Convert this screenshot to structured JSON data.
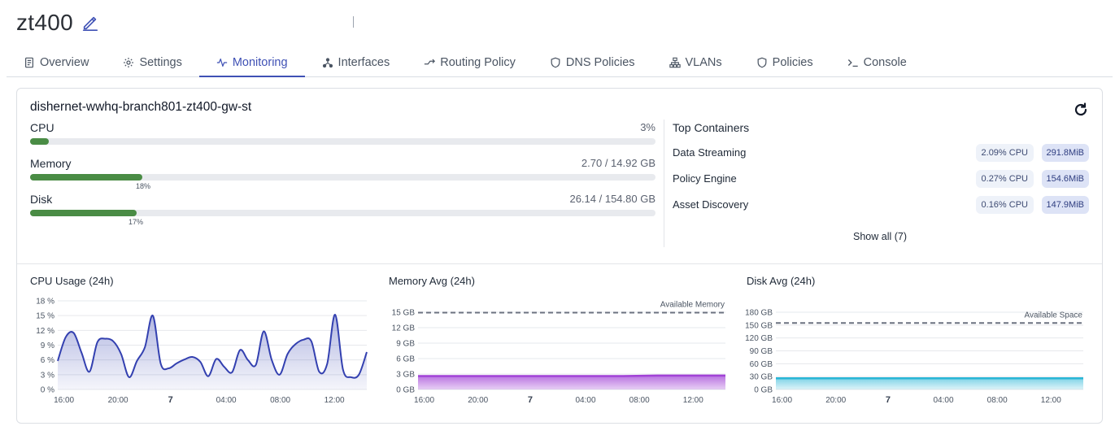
{
  "header": {
    "title": "zt400"
  },
  "tabs": [
    {
      "label": "Overview",
      "icon": "document-icon",
      "active": false
    },
    {
      "label": "Settings",
      "icon": "gear-icon",
      "active": false
    },
    {
      "label": "Monitoring",
      "icon": "pulse-icon",
      "active": true
    },
    {
      "label": "Interfaces",
      "icon": "network-icon",
      "active": false
    },
    {
      "label": "Routing Policy",
      "icon": "route-icon",
      "active": false
    },
    {
      "label": "DNS Policies",
      "icon": "shield-icon",
      "active": false
    },
    {
      "label": "VLANs",
      "icon": "hierarchy-icon",
      "active": false
    },
    {
      "label": "Policies",
      "icon": "shield-icon",
      "active": false
    },
    {
      "label": "Console",
      "icon": "terminal-icon",
      "active": false
    }
  ],
  "device": {
    "name": "dishernet-wwhq-branch801-zt400-gw-st",
    "metrics": {
      "cpu": {
        "label": "CPU",
        "value": "3%",
        "fraction": 0.03
      },
      "memory": {
        "label": "Memory",
        "value": "2.70 / 14.92 GB",
        "pct_label": "18%",
        "fraction": 0.18
      },
      "disk": {
        "label": "Disk",
        "value": "26.14 / 154.80 GB",
        "pct_label": "17%",
        "fraction": 0.17
      }
    }
  },
  "containers": {
    "title": "Top Containers",
    "items": [
      {
        "name": "Data Streaming",
        "cpu": "2.09% CPU",
        "mem": "291.8MiB"
      },
      {
        "name": "Policy Engine",
        "cpu": "0.27% CPU",
        "mem": "154.6MiB"
      },
      {
        "name": "Asset Discovery",
        "cpu": "0.16% CPU",
        "mem": "147.9MiB"
      }
    ],
    "show_all": "Show all (7)"
  },
  "colors": {
    "accent": "#3f51b5",
    "bar": "#4a8c45",
    "cpu_line": "#3340b0",
    "mem_line": "#a142d6",
    "disk_line": "#29b6d6"
  },
  "chart_data": [
    {
      "type": "area",
      "title": "CPU Usage (24h)",
      "x_ticks": [
        "16:00",
        "20:00",
        "7",
        "04:00",
        "08:00",
        "12:00"
      ],
      "y_ticks": [
        "18 %",
        "15 %",
        "12 %",
        "9 %",
        "6 %",
        "3 %",
        "0 %"
      ],
      "ylim": [
        0,
        18
      ],
      "series": [
        {
          "values": [
            5.8,
            10.6,
            11.5,
            7.5,
            3.6,
            9.6,
            10.3,
            9.8,
            7.2,
            2.5,
            5.8,
            8.6,
            15.0,
            5.2,
            4.3,
            5.3,
            6.1,
            6.6,
            5.6,
            2.7,
            6.2,
            4.6,
            3.5,
            8.0,
            6.0,
            5.0,
            11.8,
            6.0,
            3.0,
            7.2,
            9.2,
            10.1,
            9.8,
            3.6,
            5.2,
            15.2,
            4.0,
            2.5,
            3.0,
            7.6
          ]
        }
      ]
    },
    {
      "type": "area",
      "title": "Memory Avg (24h)",
      "x_ticks": [
        "16:00",
        "20:00",
        "7",
        "04:00",
        "08:00",
        "12:00"
      ],
      "y_ticks": [
        "15 GB",
        "12 GB",
        "9 GB",
        "6 GB",
        "3 GB",
        "0 GB"
      ],
      "ylim": [
        0,
        15
      ],
      "series": [
        {
          "values": [
            2.6,
            2.6,
            2.6,
            2.6,
            2.6,
            2.6,
            2.6,
            2.7,
            2.7,
            2.7
          ]
        }
      ],
      "reference": {
        "label": "Available Memory",
        "value": 14.92
      }
    },
    {
      "type": "area",
      "title": "Disk Avg (24h)",
      "x_ticks": [
        "16:00",
        "20:00",
        "7",
        "04:00",
        "08:00",
        "12:00"
      ],
      "y_ticks": [
        "180 GB",
        "150 GB",
        "120 GB",
        "90 GB",
        "60 GB",
        "30 GB",
        "0 GB"
      ],
      "ylim": [
        0,
        180
      ],
      "series": [
        {
          "values": [
            26.1,
            26.1,
            26.1,
            26.1,
            26.1,
            26.1,
            26.1,
            26.1,
            26.1,
            26.1
          ]
        }
      ],
      "reference": {
        "label": "Available Space",
        "value": 154.8
      }
    }
  ]
}
